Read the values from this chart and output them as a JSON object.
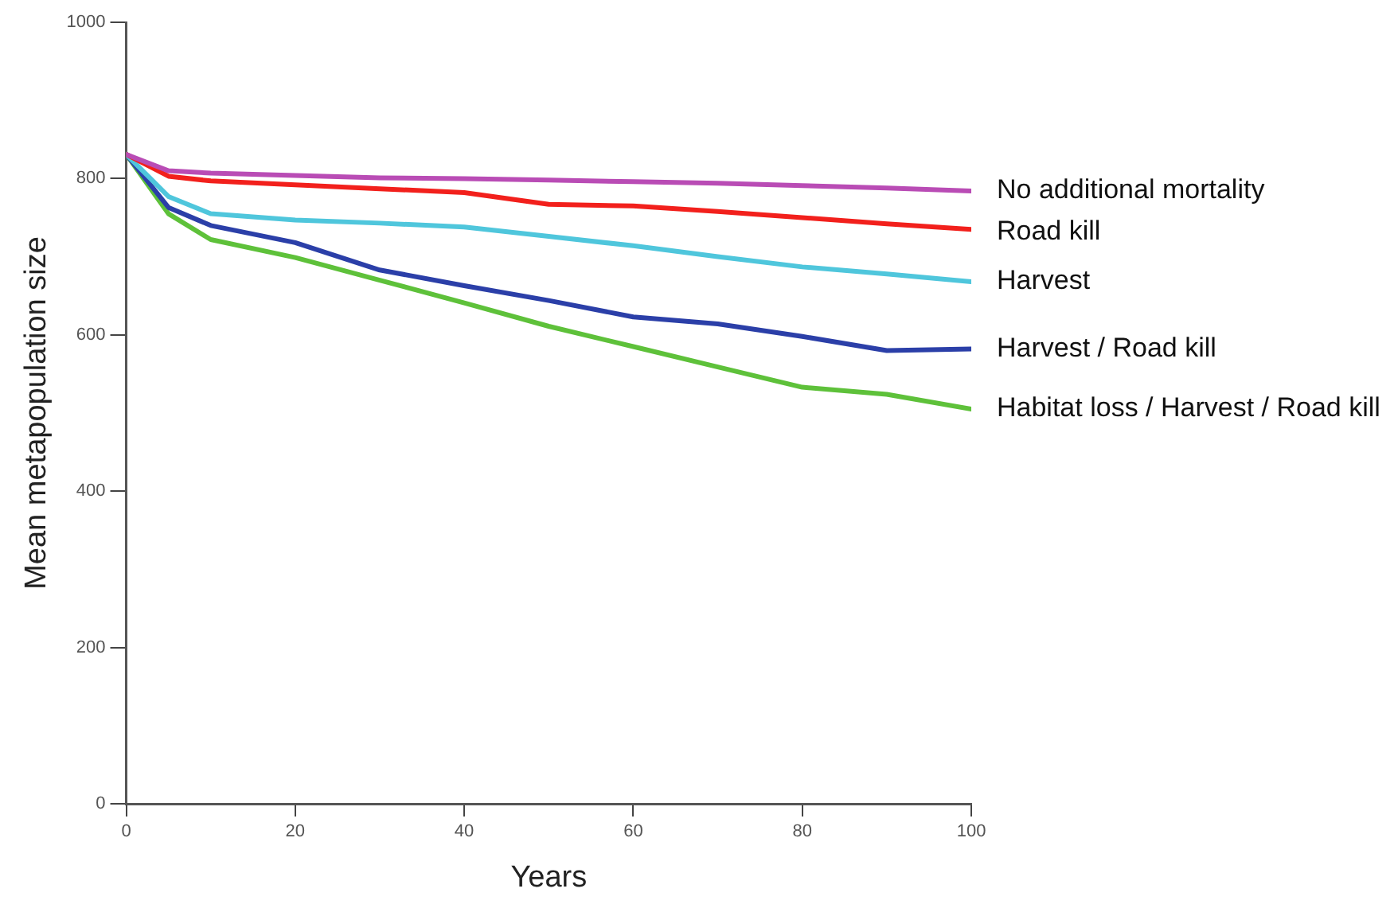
{
  "chart_data": {
    "type": "line",
    "xlabel": "Years",
    "ylabel": "Mean metapopulation size",
    "xlim": [
      0,
      100
    ],
    "xticks": [
      0,
      20,
      40,
      60,
      80,
      100
    ],
    "ylim": [
      0,
      1000
    ],
    "yticks": [
      0,
      200,
      400,
      600,
      800,
      1000
    ],
    "grid": false,
    "legend": false,
    "marker": "none",
    "line_style": "solid",
    "x": [
      0,
      5,
      10,
      20,
      30,
      40,
      50,
      60,
      70,
      80,
      90,
      100
    ],
    "series": [
      {
        "name": "No additional mortality",
        "color": "#b94cb5",
        "values": [
          831,
          810,
          807,
          804,
          801,
          800,
          798,
          796,
          794,
          791,
          788,
          784
        ]
      },
      {
        "name": "Road kill",
        "color": "#f2201c",
        "values": [
          831,
          803,
          797,
          792,
          787,
          782,
          767,
          765,
          758,
          750,
          742,
          735
        ]
      },
      {
        "name": "Harvest",
        "color": "#4fc6dc",
        "values": [
          831,
          777,
          755,
          747,
          743,
          738,
          726,
          714,
          700,
          687,
          678,
          668
        ]
      },
      {
        "name": "Harvest / Road kill",
        "color": "#2b3fa8",
        "values": [
          831,
          763,
          740,
          718,
          683,
          663,
          644,
          623,
          614,
          598,
          580,
          582
        ]
      },
      {
        "name": "Habitat loss / Harvest / Road kill",
        "color": "#5ec13a",
        "values": [
          831,
          755,
          722,
          699,
          670,
          641,
          611,
          585,
          559,
          533,
          524,
          505
        ]
      }
    ]
  }
}
